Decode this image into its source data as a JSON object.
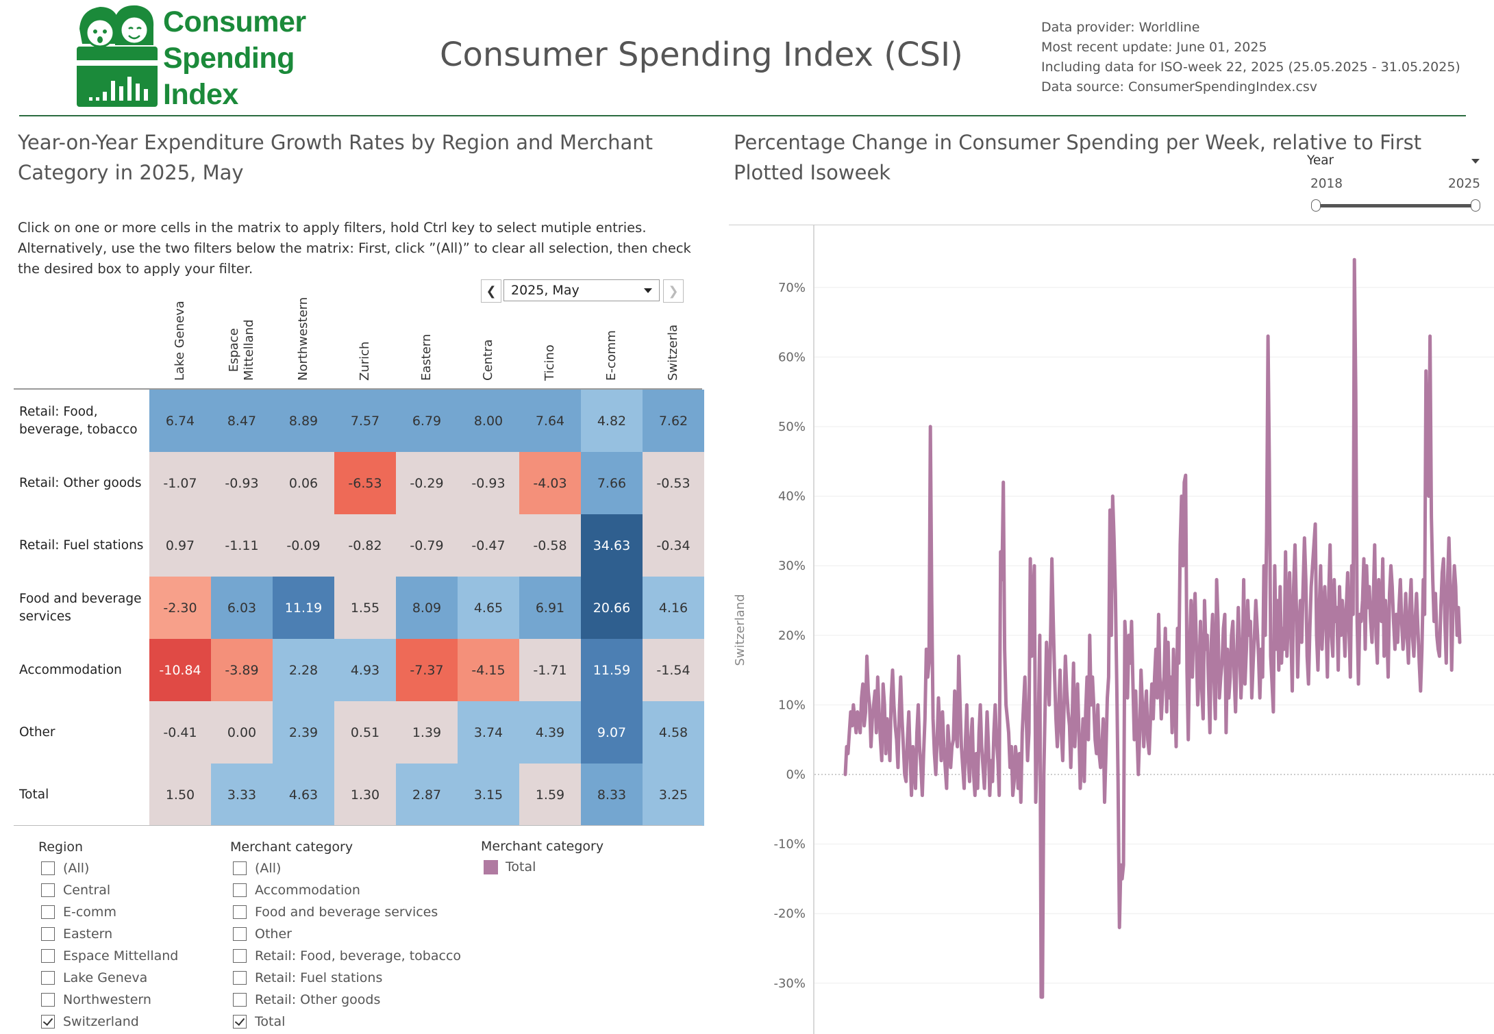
{
  "header": {
    "logo_text": [
      "Consumer",
      "Spending",
      "Index"
    ],
    "title": "Consumer Spending Index (CSI)",
    "info": [
      "Data provider: Worldline",
      "Most recent update: June 01, 2025",
      "Including data for ISO-week 22, 2025 (25.05.2025 - 31.05.2025)",
      "Data source: ConsumerSpendingIndex.csv"
    ]
  },
  "colors": {
    "brand_green": "#1b8a3a",
    "line": "#b07aa1"
  },
  "left": {
    "title": "Year-on-Year Expenditure Growth Rates by Region and Merchant Category in 2025, May",
    "instructions": "Click on one or more cells in the matrix to apply filters, hold Ctrl key to select mutiple entries. Alternatively, use the two filters below the matrix: First, click ”(All)” to clear all selection, then check the desired box to apply your filter.",
    "month_selector": {
      "value": "2025, May",
      "prev_icon": "chevron-left-icon",
      "next_icon": "chevron-right-icon"
    },
    "matrix": {
      "columns": [
        [
          "Lake Geneva"
        ],
        [
          "Espace",
          "Mittelland"
        ],
        [
          "Northwestern"
        ],
        [
          "Zurich"
        ],
        [
          "Eastern"
        ],
        [
          "Centra"
        ],
        [
          "Ticino"
        ],
        [
          "E-comm"
        ],
        [
          "Switzerla"
        ]
      ],
      "rows": [
        {
          "label": [
            "Retail: Food,",
            "beverage, tobacco"
          ],
          "values": [
            "6.74",
            "8.47",
            "8.89",
            "7.57",
            "6.79",
            "8.00",
            "7.64",
            "4.82",
            "7.62"
          ]
        },
        {
          "label": [
            "Retail: Other goods"
          ],
          "values": [
            "-1.07",
            "-0.93",
            "0.06",
            "-6.53",
            "-0.29",
            "-0.93",
            "-4.03",
            "7.66",
            "-0.53"
          ]
        },
        {
          "label": [
            "Retail: Fuel stations"
          ],
          "values": [
            "0.97",
            "-1.11",
            "-0.09",
            "-0.82",
            "-0.79",
            "-0.47",
            "-0.58",
            "34.63",
            "-0.34"
          ]
        },
        {
          "label": [
            "Food and beverage",
            "services"
          ],
          "values": [
            "-2.30",
            "6.03",
            "11.19",
            "1.55",
            "8.09",
            "4.65",
            "6.91",
            "20.66",
            "4.16"
          ]
        },
        {
          "label": [
            "Accommodation"
          ],
          "values": [
            "-10.84",
            "-3.89",
            "2.28",
            "4.93",
            "-7.37",
            "-4.15",
            "-1.71",
            "11.59",
            "-1.54"
          ]
        },
        {
          "label": [
            "Other"
          ],
          "values": [
            "-0.41",
            "0.00",
            "2.39",
            "0.51",
            "1.39",
            "3.74",
            "4.39",
            "9.07",
            "4.58"
          ]
        },
        {
          "label": [
            "Total"
          ],
          "values": [
            "1.50",
            "3.33",
            "4.63",
            "1.30",
            "2.87",
            "3.15",
            "1.59",
            "8.33",
            "3.25"
          ]
        }
      ]
    },
    "filters": {
      "region": {
        "title": "Region",
        "items": [
          {
            "label": "(All)",
            "checked": false
          },
          {
            "label": "Central",
            "checked": false
          },
          {
            "label": "E-comm",
            "checked": false
          },
          {
            "label": "Eastern",
            "checked": false
          },
          {
            "label": "Espace Mittelland",
            "checked": false
          },
          {
            "label": "Lake Geneva",
            "checked": false
          },
          {
            "label": "Northwestern",
            "checked": false
          },
          {
            "label": "Switzerland",
            "checked": true
          }
        ]
      },
      "merchant": {
        "title": "Merchant category",
        "items": [
          {
            "label": "(All)",
            "checked": false
          },
          {
            "label": "Accommodation",
            "checked": false
          },
          {
            "label": "Food and beverage services",
            "checked": false
          },
          {
            "label": "Other",
            "checked": false
          },
          {
            "label": "Retail: Food, beverage, tobacco",
            "checked": false
          },
          {
            "label": "Retail: Fuel stations",
            "checked": false
          },
          {
            "label": "Retail: Other goods",
            "checked": false
          },
          {
            "label": "Total",
            "checked": true
          }
        ]
      }
    },
    "legend": {
      "title": "Merchant category",
      "item": "Total"
    }
  },
  "right": {
    "title": "Percentage Change in Consumer Spending per Week, relative to First Plotted Isoweek",
    "year_filter": {
      "label": "Year",
      "min": "2018",
      "max": "2025"
    }
  },
  "chart_data": {
    "type": "line",
    "ylabel": "Switzerland",
    "ylim": [
      -37,
      82
    ],
    "yticks": [
      "70%",
      "60%",
      "50%",
      "40%",
      "30%",
      "20%",
      "10%",
      "0%",
      "-10%",
      "-20%",
      "-30%"
    ],
    "ytick_values": [
      70,
      60,
      50,
      40,
      30,
      20,
      10,
      0,
      -10,
      -20,
      -30
    ],
    "x_range": [
      "2018",
      "2025"
    ],
    "series": [
      {
        "values": [
          0,
          4,
          3,
          6,
          9,
          7,
          10,
          8,
          6,
          9,
          8,
          6,
          11,
          13,
          7,
          9,
          17,
          12,
          10,
          4,
          8,
          10,
          12,
          6,
          14,
          9,
          5,
          2,
          13,
          10,
          3,
          8,
          6,
          2,
          11,
          15,
          10,
          7,
          5,
          1,
          9,
          14,
          8,
          4,
          0,
          -1,
          5,
          9,
          3,
          -3,
          4,
          2,
          -2,
          6,
          10,
          4,
          1,
          -3,
          3,
          8,
          18,
          14,
          16,
          50,
          25,
          8,
          3,
          0,
          5,
          11,
          6,
          2,
          9,
          4,
          1,
          -2,
          7,
          4,
          1,
          4,
          5,
          12,
          6,
          4,
          17,
          10,
          4,
          1,
          -2,
          5,
          10,
          2,
          -1,
          5,
          8,
          0,
          -3,
          3,
          -2,
          6,
          10,
          4,
          1,
          -2,
          3,
          9,
          4,
          -3,
          2,
          -1,
          6,
          10,
          5,
          2,
          -3,
          32,
          28,
          42,
          18,
          10,
          8,
          6,
          1,
          4,
          -3,
          -1,
          4,
          2,
          -2,
          3,
          -4,
          6,
          10,
          14,
          8,
          2,
          6,
          31,
          17,
          25,
          30,
          -4,
          3,
          8,
          20,
          -32,
          -32,
          0,
          10,
          19,
          15,
          10,
          20,
          31,
          22,
          14,
          8,
          4,
          9,
          15,
          6,
          2,
          10,
          17,
          12,
          9,
          7,
          1,
          8,
          16,
          4,
          9,
          13,
          6,
          -2,
          3,
          8,
          -1,
          9,
          14,
          5,
          20,
          10,
          14,
          10,
          5,
          3,
          10,
          3,
          1,
          4,
          8,
          -4,
          3,
          11,
          14,
          38,
          20,
          40,
          34,
          26,
          13,
          -1,
          -22,
          -13,
          -15,
          -13,
          22,
          18,
          11,
          20,
          16,
          22,
          13,
          5,
          12,
          6,
          0,
          6,
          15,
          10,
          4,
          9,
          12,
          5,
          3,
          8,
          13,
          8,
          14,
          18,
          11,
          23,
          14,
          8,
          12,
          14,
          21,
          9,
          19,
          11,
          14,
          6,
          18,
          12,
          4,
          21,
          16,
          33,
          40,
          30,
          42,
          43,
          15,
          5,
          18,
          25,
          14,
          22,
          26,
          18,
          10,
          15,
          22,
          12,
          8,
          25,
          18,
          20,
          13,
          6,
          19,
          23,
          14,
          8,
          28,
          22,
          11,
          14,
          16,
          21,
          23,
          6,
          18,
          11,
          14,
          20,
          22,
          14,
          9,
          17,
          24,
          18,
          11,
          16,
          28,
          13,
          18,
          25,
          20,
          22,
          11,
          16,
          20,
          25,
          21,
          17,
          11,
          18,
          14,
          30,
          20,
          35,
          63,
          45,
          17,
          13,
          9,
          30,
          18,
          25,
          15,
          27,
          16,
          21,
          18,
          32,
          17,
          22,
          29,
          20,
          12,
          27,
          33,
          24,
          14,
          21,
          25,
          19,
          27,
          34,
          28,
          17,
          13,
          21,
          27,
          30,
          33,
          36,
          20,
          15,
          24,
          30,
          18,
          23,
          27,
          22,
          14,
          26,
          33,
          20,
          17,
          28,
          22,
          24,
          15,
          27,
          20,
          25,
          22,
          17,
          24,
          29,
          21,
          14,
          30,
          23,
          74,
          55,
          22,
          13,
          23,
          22,
          25,
          31,
          18,
          30,
          24,
          27,
          22,
          19,
          25,
          33,
          20,
          16,
          28,
          24,
          22,
          31,
          17,
          25,
          21,
          14,
          26,
          30,
          27,
          22,
          18,
          23,
          19,
          24,
          28,
          22,
          18,
          21,
          26,
          20,
          16,
          24,
          28,
          20,
          17,
          22,
          26,
          21,
          16,
          12,
          18,
          28,
          23,
          58,
          46,
          40,
          63,
          37,
          28,
          22,
          26,
          20,
          18,
          17,
          24,
          29,
          31,
          22,
          16,
          28,
          34,
          27,
          15,
          24,
          30,
          27,
          20,
          24,
          19
        ]
      }
    ]
  }
}
